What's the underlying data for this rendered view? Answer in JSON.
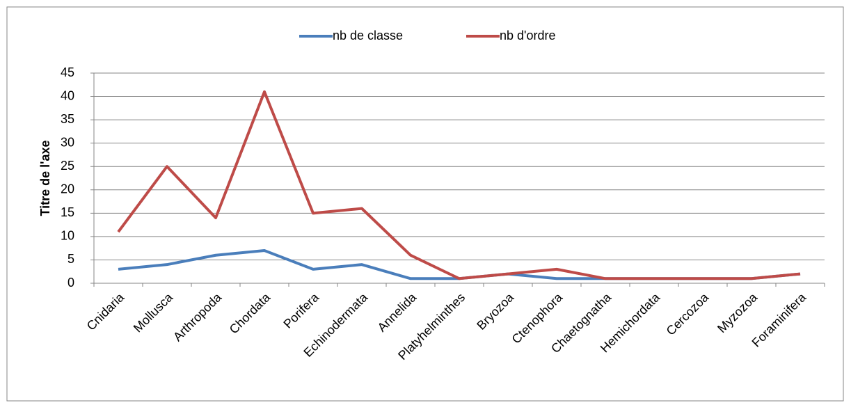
{
  "chart_data": {
    "type": "line",
    "y_label": "Titre de l'axe",
    "categories": [
      "Cnidaria",
      "Mollusca",
      "Arthropoda",
      "Chordata",
      "Porifera",
      "Echinodermata",
      "Annelida",
      "Platyhelminthes",
      "Bryozoa",
      "Ctenophora",
      "Chaetognatha",
      "Hemichordata",
      "Cercozoa",
      "Myzozoa",
      "Foraminifera"
    ],
    "series": [
      {
        "name": "nb de classe",
        "color": "#4a7ebb",
        "values": [
          3,
          4,
          6,
          7,
          3,
          4,
          1,
          1,
          2,
          1,
          1,
          1,
          1,
          1,
          2
        ]
      },
      {
        "name": "nb d'ordre",
        "color": "#be4b48",
        "values": [
          11,
          25,
          14,
          41,
          15,
          16,
          6,
          1,
          2,
          3,
          1,
          1,
          1,
          1,
          2
        ]
      }
    ],
    "ylim": [
      0,
      45
    ],
    "yticks": [
      0,
      5,
      10,
      15,
      20,
      25,
      30,
      35,
      40,
      45
    ],
    "grid": true,
    "legend": "top"
  }
}
